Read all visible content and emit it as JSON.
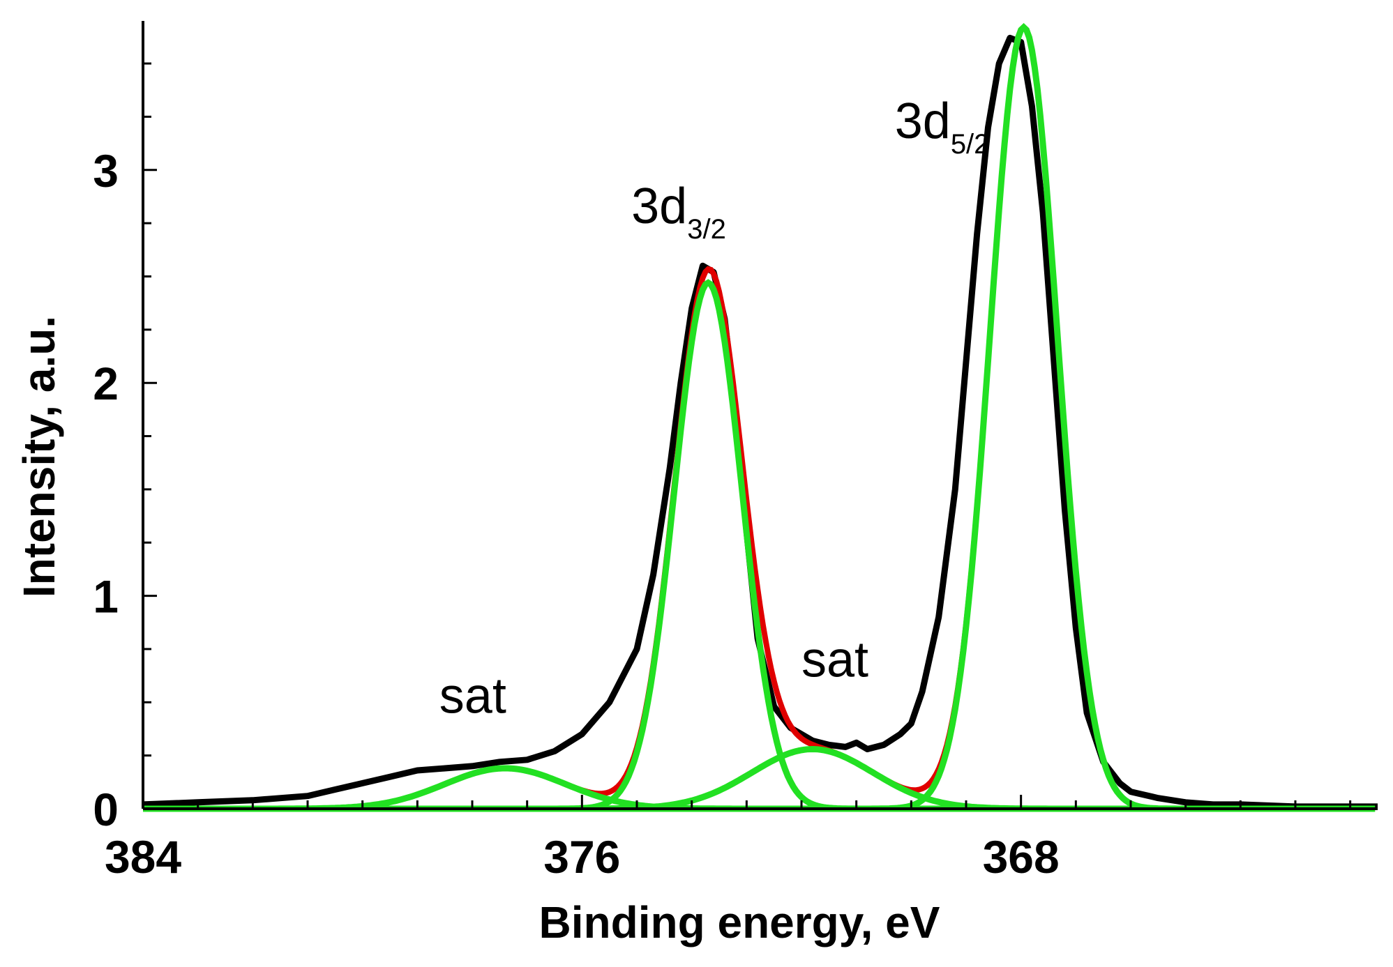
{
  "chart_data": {
    "type": "line",
    "title": "",
    "xlabel": "Binding energy, eV",
    "ylabel": "Intensity, a.u.",
    "xlim": [
      384,
      361.5
    ],
    "ylim": [
      0,
      3.7
    ],
    "x_reversed": true,
    "x_ticks": [
      384,
      376,
      368
    ],
    "x_tick_labels": [
      "384",
      "376",
      "368"
    ],
    "y_ticks": [
      0,
      1,
      2,
      3
    ],
    "y_tick_labels": [
      "0",
      "1",
      "2",
      "3"
    ],
    "grid": false,
    "legend": "none",
    "colors": {
      "experimental": "#000000",
      "envelope": "#e00000",
      "component": "#22e022"
    },
    "experimental": {
      "x": [
        384,
        383,
        382,
        381,
        380.5,
        380,
        379.5,
        379,
        378.5,
        378,
        377.5,
        377,
        376.5,
        376,
        375.5,
        375,
        374.7,
        374.4,
        374.2,
        374.0,
        373.8,
        373.6,
        373.4,
        373.2,
        373.0,
        372.8,
        372.5,
        372.2,
        371.8,
        371.5,
        371.2,
        371.0,
        370.8,
        370.5,
        370.2,
        370.0,
        369.8,
        369.5,
        369.2,
        369.0,
        368.8,
        368.6,
        368.4,
        368.2,
        368.0,
        367.8,
        367.6,
        367.4,
        367.2,
        367.0,
        366.8,
        366.5,
        366.2,
        366.0,
        365.5,
        365.0,
        364.5,
        364.0,
        363,
        362,
        361.5
      ],
      "y": [
        0.02,
        0.03,
        0.04,
        0.06,
        0.09,
        0.12,
        0.15,
        0.18,
        0.19,
        0.2,
        0.22,
        0.23,
        0.27,
        0.35,
        0.5,
        0.75,
        1.1,
        1.6,
        2.0,
        2.35,
        2.55,
        2.52,
        2.3,
        1.85,
        1.3,
        0.8,
        0.48,
        0.38,
        0.32,
        0.3,
        0.29,
        0.31,
        0.28,
        0.3,
        0.35,
        0.4,
        0.55,
        0.9,
        1.5,
        2.1,
        2.7,
        3.2,
        3.5,
        3.62,
        3.6,
        3.3,
        2.8,
        2.1,
        1.4,
        0.85,
        0.45,
        0.22,
        0.12,
        0.08,
        0.05,
        0.03,
        0.02,
        0.02,
        0.01,
        0.01,
        0.01
      ]
    },
    "components": [
      {
        "center": 373.7,
        "height": 2.47,
        "fwhm": 1.45
      },
      {
        "center": 367.95,
        "height": 3.67,
        "fwhm": 1.45
      },
      {
        "center": 377.4,
        "height": 0.19,
        "fwhm": 2.6
      },
      {
        "center": 371.8,
        "height": 0.28,
        "fwhm": 2.6
      }
    ],
    "annotations": [
      {
        "text": "3d",
        "sub": "3/2",
        "x": 375.1,
        "y": 2.75
      },
      {
        "text": "3d",
        "sub": "5/2",
        "x": 370.3,
        "y": 3.15
      },
      {
        "text": "sat",
        "x": 378.6,
        "y": 0.45
      },
      {
        "text": "sat",
        "x": 372.0,
        "y": 0.62
      }
    ]
  }
}
